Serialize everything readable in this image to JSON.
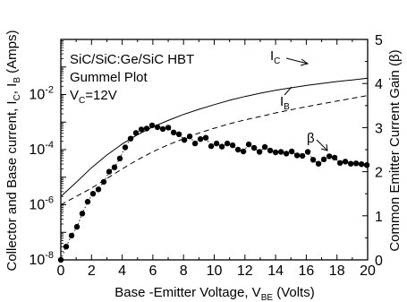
{
  "chart_data": {
    "type": "line",
    "annotations": {
      "line1": "SiC/SiC:Ge/SiC HBT",
      "line2": "Gummel Plot",
      "vc_label": "V",
      "vc_sub": "C",
      "vc_value": "=12V"
    },
    "xlabel": {
      "text": "Base -Emitter Voltage, V",
      "sub": "BE",
      "unit": " (Volts)"
    },
    "ylabel_left": {
      "p1": "Collector and Base current, I",
      "s1": "C",
      "p2": ", I",
      "s2": "B",
      "p3": " (Amps)"
    },
    "ylabel_right": "Common Emitter Current Gain (β)",
    "xlim": [
      0,
      20
    ],
    "ylim_left": [
      1e-08,
      1
    ],
    "ylim_left_log": true,
    "ylim_right": [
      0,
      5
    ],
    "x_ticks": [
      "0",
      "2",
      "4",
      "6",
      "8",
      "10",
      "12",
      "14",
      "16",
      "18",
      "20"
    ],
    "y_left_ticks": [
      {
        "base": "10",
        "exp": "-8",
        "value": 1e-08
      },
      {
        "base": "10",
        "exp": "-6",
        "value": 1e-06
      },
      {
        "base": "10",
        "exp": "-4",
        "value": 0.0001
      },
      {
        "base": "10",
        "exp": "-2",
        "value": 0.01
      }
    ],
    "y_right_ticks": [
      "0",
      "1",
      "2",
      "3",
      "4",
      "5"
    ],
    "series": [
      {
        "name": "I",
        "sub": "C",
        "axis": "left",
        "style": "solid",
        "x": [
          0,
          1,
          2,
          3,
          4,
          5,
          6,
          7,
          8,
          9,
          10,
          11,
          12,
          13,
          14,
          15,
          16,
          17,
          18,
          19,
          20
        ],
        "y": [
          2e-06,
          6.5e-06,
          2.2e-05,
          6.4e-05,
          0.00016,
          0.00035,
          0.00067,
          0.00115,
          0.0019,
          0.0029,
          0.0043,
          0.0062,
          0.0085,
          0.0112,
          0.0142,
          0.0176,
          0.0213,
          0.0253,
          0.0296,
          0.034,
          0.039
        ]
      },
      {
        "name": "I",
        "sub": "B",
        "axis": "left",
        "style": "dashed",
        "x": [
          0,
          1,
          2,
          3,
          4,
          5,
          6,
          7,
          8,
          9,
          10,
          11,
          12,
          13,
          14,
          15,
          16,
          17,
          18,
          19,
          20
        ],
        "y": [
          1e-06,
          2e-06,
          4e-06,
          9e-06,
          2e-05,
          4.3e-05,
          8.4e-05,
          0.00015,
          0.00025,
          0.0004,
          0.0006,
          0.00087,
          0.0012,
          0.0016,
          0.00215,
          0.0028,
          0.0036,
          0.0046,
          0.0058,
          0.0073,
          0.0092
        ]
      },
      {
        "name": "β",
        "axis": "right",
        "style": "dotted-markers",
        "x": [
          0,
          0.35,
          0.7,
          1.05,
          1.4,
          1.75,
          2.1,
          2.45,
          2.8,
          3.15,
          3.5,
          3.85,
          4.2,
          4.55,
          4.9,
          5.25,
          5.6,
          5.95,
          6.3,
          6.65,
          7,
          7.35,
          7.7,
          8.05,
          8.4,
          8.75,
          9.1,
          9.45,
          9.8,
          10.15,
          10.5,
          10.85,
          11.2,
          11.55,
          11.9,
          12.25,
          12.6,
          12.95,
          13.3,
          13.65,
          14,
          14.35,
          14.7,
          15.05,
          15.4,
          15.75,
          16.1,
          16.45,
          16.8,
          17.15,
          17.5,
          17.85,
          18.2,
          18.55,
          18.9,
          19.25,
          19.6,
          19.95
        ],
        "y": [
          0,
          0.3,
          0.55,
          0.75,
          1.05,
          1.32,
          1.5,
          1.6,
          1.77,
          2.0,
          2.1,
          2.3,
          2.55,
          2.75,
          2.88,
          2.96,
          2.98,
          3.05,
          3.01,
          2.97,
          3.0,
          2.89,
          2.85,
          2.72,
          2.8,
          2.64,
          2.74,
          2.77,
          2.58,
          2.64,
          2.57,
          2.64,
          2.6,
          2.5,
          2.46,
          2.62,
          2.54,
          2.45,
          2.56,
          2.48,
          2.44,
          2.45,
          2.41,
          2.46,
          2.37,
          2.36,
          2.45,
          2.27,
          2.18,
          2.28,
          2.35,
          2.32,
          2.2,
          2.23,
          2.18,
          2.19,
          2.17,
          2.15
        ]
      }
    ],
    "grid": false
  }
}
